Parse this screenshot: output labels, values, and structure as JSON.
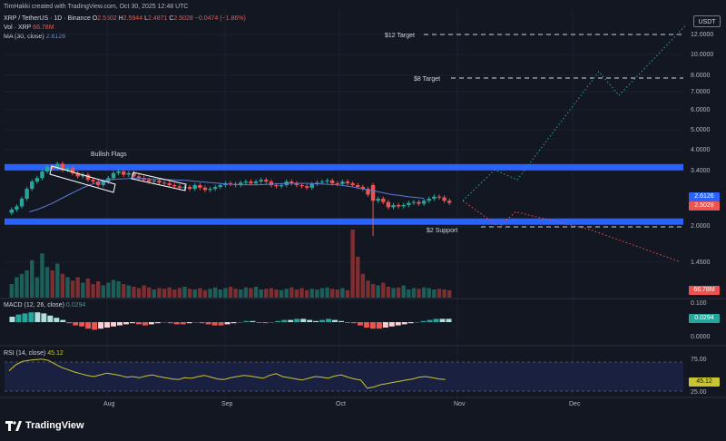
{
  "header": {
    "attribution": "TimHakki created with TradingView.com, Oct 30, 2025 12:48 UTC",
    "symbol": "XRP / TetherUS · 1D · Binance",
    "ohlc": {
      "o_label": "O",
      "o": "2.5502",
      "h_label": "H",
      "h": "2.5944",
      "l_label": "L",
      "l": "2.4871",
      "c_label": "C",
      "c": "2.5028",
      "change": "−0.0474 (−1.86%)"
    },
    "vol_label": "Vol · XRP",
    "vol_value": "66.78M",
    "ma_label": "MA (30, close)",
    "ma_value": "2.6126"
  },
  "price_axis": {
    "currency": "USDT",
    "ticks": [
      "12.0000",
      "10.0000",
      "8.0000",
      "7.0000",
      "6.0000",
      "5.0000",
      "4.0000",
      "3.4000",
      "2.0000",
      "1.4500"
    ],
    "last_price": "2.5028",
    "ma_price": "2.6126",
    "volume": "66.78M"
  },
  "annotations": {
    "bullish_flags": "Bullish Flags",
    "target_12": "$12 Target",
    "target_8": "$8 Target",
    "support_2": "$2 Support"
  },
  "macd": {
    "label": "MACD (12, 26, close)",
    "value": "0.0294",
    "ticks": [
      "0.100",
      "0.0294",
      "0.0000"
    ]
  },
  "rsi": {
    "label": "RSI (14, close)",
    "value": "45.12",
    "ticks": [
      "75.00",
      "45.12",
      "25.00"
    ]
  },
  "time_axis": [
    "Aug",
    "Sep",
    "Oct",
    "Nov",
    "Dec"
  ],
  "brand": "TradingView",
  "colors": {
    "up": "#26a69a",
    "down": "#ef5350",
    "zone": "#2962ff",
    "ma": "#2962ff",
    "bg": "#131722",
    "rsi": "#c9c531"
  },
  "chart_data": {
    "type": "candlestick",
    "y_scale": "log",
    "levels": {
      "resistance_zone": 3.5,
      "support_zone": 2.2,
      "support": 2.0,
      "target_8": 8.0,
      "target_12": 12.0
    },
    "candles": [
      2.35,
      2.42,
      2.6,
      2.85,
      3.05,
      3.15,
      3.35,
      3.5,
      3.45,
      3.6,
      3.4,
      3.45,
      3.3,
      3.2,
      3.25,
      3.1,
      3.05,
      2.95,
      3.05,
      3.15,
      3.3,
      3.35,
      3.25,
      3.3,
      3.2,
      3.15,
      3.1,
      3.05,
      3.08,
      3.02,
      3.0,
      2.95,
      2.92,
      2.88,
      2.9,
      2.85,
      2.95,
      2.88,
      2.82,
      2.85,
      2.9,
      2.95,
      3.0,
      2.98,
      2.95,
      3.02,
      3.05,
      3.0,
      3.05,
      3.1,
      3.05,
      2.95,
      2.92,
      2.95,
      3.05,
      3.0,
      2.95,
      2.92,
      2.88,
      2.98,
      3.02,
      3.05,
      3.08,
      3.0,
      2.98,
      3.05,
      3.0,
      2.95,
      2.9,
      2.85,
      2.7,
      2.55,
      2.6,
      2.52,
      2.4,
      2.45,
      2.42,
      2.45,
      2.5,
      2.52,
      2.48,
      2.55,
      2.6,
      2.65,
      2.63,
      2.55,
      2.5
    ],
    "ma30": [
      2.3,
      2.35,
      2.42,
      2.5,
      2.6,
      2.7,
      2.8,
      2.9,
      2.98,
      3.05,
      3.1,
      3.12,
      3.13,
      3.14,
      3.14,
      3.13,
      3.12,
      3.11,
      3.1,
      3.09,
      3.08,
      3.06,
      3.04,
      3.02,
      3.0,
      2.98,
      2.97,
      2.96,
      2.96,
      2.96,
      2.97,
      2.98,
      2.99,
      3.0,
      3.0,
      3.0,
      2.99,
      2.98,
      2.97,
      2.96,
      2.93,
      2.9,
      2.86,
      2.82,
      2.78,
      2.74,
      2.7,
      2.68,
      2.65,
      2.63,
      2.61
    ],
    "projection_bull": [
      [
        2.55,
        0
      ],
      [
        3.4,
        1
      ],
      [
        3.1,
        2
      ],
      [
        8.5,
        3
      ],
      [
        6.8,
        4
      ],
      [
        13.0,
        5
      ]
    ],
    "projection_bear": [
      [
        2.55,
        0
      ],
      [
        2.0,
        1
      ],
      [
        2.3,
        2
      ],
      [
        1.95,
        3
      ],
      [
        1.45,
        4
      ]
    ],
    "volume": [
      20,
      30,
      35,
      40,
      55,
      30,
      65,
      45,
      40,
      50,
      35,
      30,
      25,
      30,
      22,
      28,
      20,
      24,
      18,
      22,
      26,
      24,
      20,
      18,
      16,
      14,
      18,
      15,
      12,
      14,
      13,
      15,
      12,
      14,
      16,
      13,
      12,
      14,
      11,
      13,
      15,
      12,
      14,
      16,
      13,
      12,
      15,
      14,
      16,
      12,
      13,
      14,
      12,
      11,
      13,
      15,
      12,
      14,
      11,
      13,
      12,
      14,
      15,
      13,
      12,
      14,
      11,
      100,
      60,
      35,
      25,
      20,
      18,
      22,
      16,
      14,
      15,
      18,
      12,
      14,
      13,
      15,
      14,
      12,
      13,
      12,
      11
    ],
    "macd_hist": [
      0.05,
      0.07,
      0.08,
      0.09,
      0.09,
      0.08,
      0.06,
      0.04,
      0.02,
      -0.01,
      -0.03,
      -0.04,
      -0.06,
      -0.07,
      -0.06,
      -0.05,
      -0.04,
      -0.03,
      -0.02,
      -0.01,
      -0.02,
      -0.03,
      -0.02,
      -0.01,
      0.0,
      -0.01,
      -0.02,
      -0.02,
      -0.01,
      0.0,
      -0.01,
      -0.02,
      -0.03,
      -0.03,
      -0.02,
      -0.01,
      0.0,
      0.01,
      0.01,
      0.0,
      -0.01,
      0.0,
      0.01,
      0.02,
      0.02,
      0.03,
      0.03,
      0.02,
      0.01,
      0.02,
      0.03,
      0.02,
      0.01,
      0.0,
      -0.01,
      -0.03,
      -0.05,
      -0.06,
      -0.06,
      -0.05,
      -0.04,
      -0.03,
      -0.02,
      -0.01,
      0.0,
      0.01,
      0.02,
      0.03,
      0.03,
      0.03
    ],
    "rsi": [
      60,
      70,
      76,
      78,
      79,
      80,
      78,
      72,
      66,
      62,
      58,
      55,
      52,
      50,
      53,
      56,
      54,
      52,
      49,
      50,
      48,
      51,
      53,
      50,
      48,
      46,
      45,
      48,
      47,
      50,
      52,
      49,
      46,
      45,
      48,
      50,
      52,
      51,
      49,
      47,
      52,
      55,
      50,
      48,
      46,
      44,
      47,
      50,
      49,
      47,
      51,
      53,
      49,
      46,
      44,
      30,
      32,
      36,
      38,
      40,
      42,
      44,
      46,
      49,
      50,
      48,
      46,
      45
    ]
  }
}
